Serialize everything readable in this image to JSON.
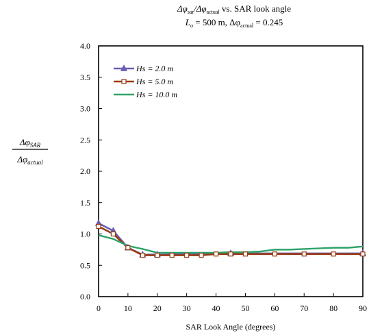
{
  "chart_data": {
    "type": "line",
    "title": {
      "line1": {
        "a": "Δφ",
        "a_sub": "sar",
        "b": "/Δφ",
        "b_sub": "actual",
        "c": " vs. SAR look angle"
      },
      "line2": {
        "a": "L",
        "a_sub": "o",
        "b": " = 500 m, Δφ",
        "b_sub": "actual",
        "c": " = 0.245"
      }
    },
    "ylabel": {
      "num": "Δφ",
      "num_sub": "SAR",
      "den": "Δφ",
      "den_sub": "actual"
    },
    "xlabel": "SAR Look Angle (degrees)",
    "xlim": [
      0,
      90
    ],
    "ylim": [
      0,
      4.0
    ],
    "x_ticks": [
      "0",
      "10",
      "20",
      "30",
      "40",
      "50",
      "60",
      "70",
      "80",
      "90"
    ],
    "y_ticks": [
      "0.0",
      "0.5",
      "1.0",
      "1.5",
      "2.0",
      "2.5",
      "3.0",
      "3.5",
      "4.0"
    ],
    "grid": false,
    "legend_position": "top-left",
    "series": [
      {
        "name": "Hs = 2.0 m",
        "color": "#6a5fb0",
        "marker": "triangle",
        "x": [
          0,
          5,
          10,
          15,
          20,
          45,
          90
        ],
        "y": [
          1.17,
          1.05,
          0.78,
          0.67,
          0.67,
          0.69,
          0.69
        ]
      },
      {
        "name": "Hs = 5.0 m",
        "color": "#9a3a10",
        "marker": "square",
        "x": [
          0,
          5,
          10,
          15,
          20,
          25,
          30,
          35,
          40,
          45,
          50,
          60,
          70,
          80,
          90
        ],
        "y": [
          1.12,
          1.0,
          0.78,
          0.66,
          0.66,
          0.66,
          0.66,
          0.66,
          0.68,
          0.68,
          0.68,
          0.68,
          0.68,
          0.68,
          0.68
        ]
      },
      {
        "name": "Hs = 10.0 m",
        "color": "#2ea36a",
        "marker": "none",
        "x": [
          0,
          5,
          10,
          15,
          20,
          25,
          30,
          35,
          40,
          45,
          50,
          55,
          60,
          65,
          70,
          75,
          80,
          85,
          90
        ],
        "y": [
          0.98,
          0.92,
          0.81,
          0.76,
          0.7,
          0.7,
          0.7,
          0.7,
          0.7,
          0.71,
          0.71,
          0.72,
          0.75,
          0.75,
          0.76,
          0.77,
          0.78,
          0.78,
          0.8
        ]
      }
    ]
  }
}
